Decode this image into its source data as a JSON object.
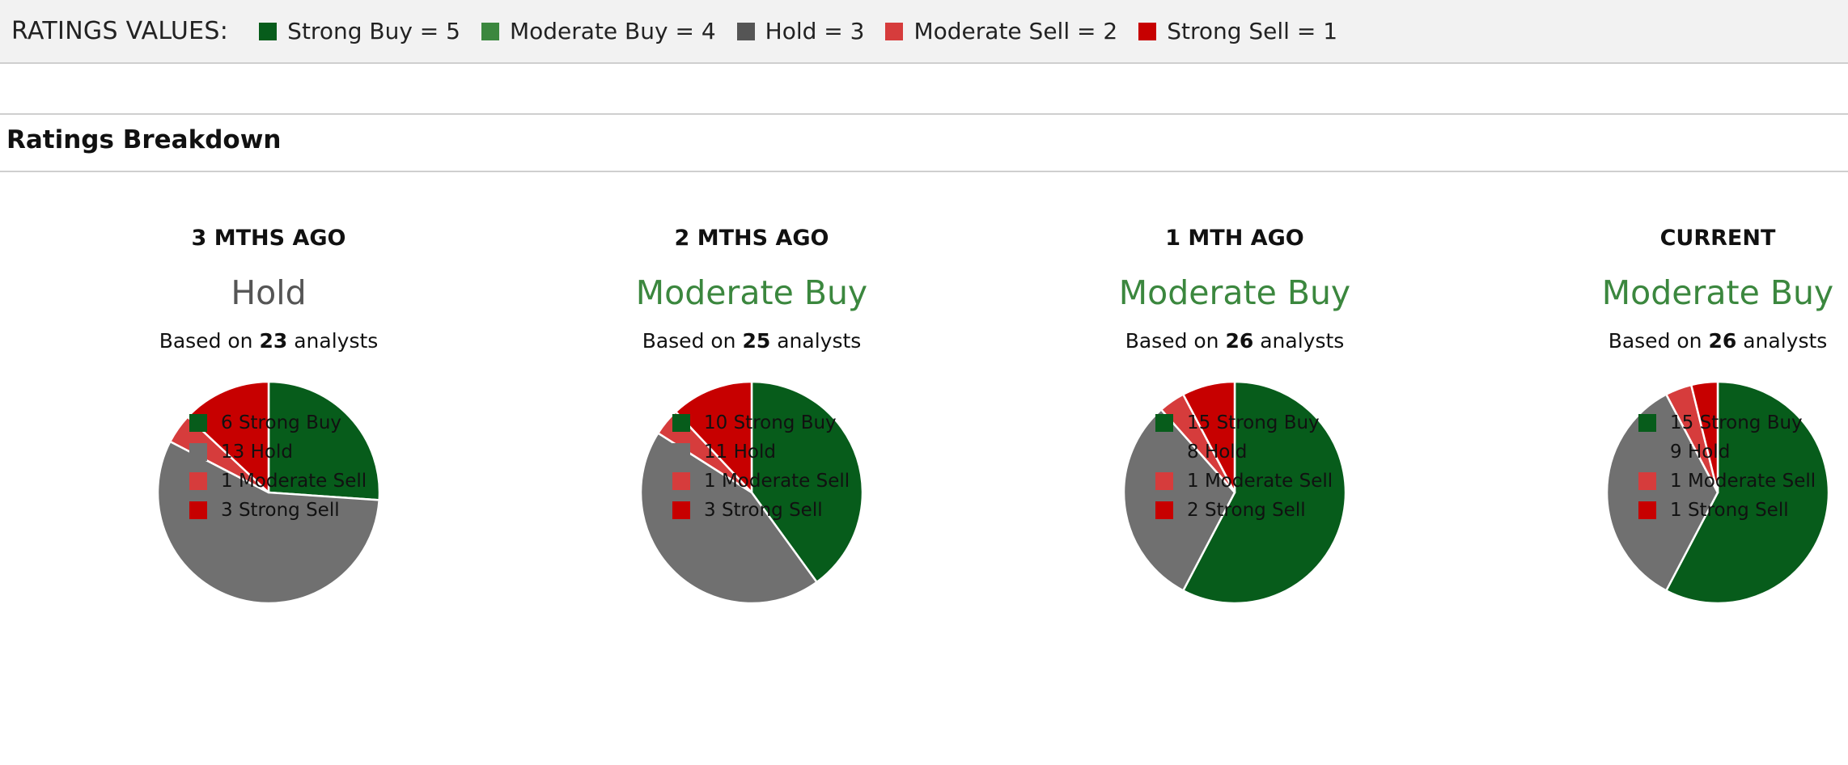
{
  "ratings_values": {
    "title": "RATINGS VALUES:",
    "items": [
      {
        "label": "Strong Buy = 5",
        "color": "#075c1b"
      },
      {
        "label": "Moderate Buy = 4",
        "color": "#3b873e"
      },
      {
        "label": "Hold = 3",
        "color": "#555555"
      },
      {
        "label": "Moderate Sell = 2",
        "color": "#d63c3c"
      },
      {
        "label": "Strong Sell = 1",
        "color": "#c70000"
      }
    ]
  },
  "section_title": "Ratings Breakdown",
  "colors": {
    "strong_buy": "#075c1b",
    "moderate_buy": "#3b873e",
    "hold": "#707070",
    "moderate_sell": "#d63c3c",
    "strong_sell": "#c70000",
    "hold_text": "#555555"
  },
  "chart_data": [
    {
      "type": "pie",
      "title": "3 MTHS AGO",
      "consensus": "Hold",
      "consensus_color": "#555555",
      "analysts_prefix": "Based on",
      "analysts_count": "23",
      "analysts_suffix": "analysts",
      "slices": [
        {
          "label": "Strong Buy",
          "value": 6,
          "color": "#075c1b"
        },
        {
          "label": "Hold",
          "value": 13,
          "color": "#707070"
        },
        {
          "label": "Moderate Sell",
          "value": 1,
          "color": "#d63c3c"
        },
        {
          "label": "Strong Sell",
          "value": 3,
          "color": "#c70000"
        }
      ],
      "legend": [
        "6 Strong Buy",
        "13 Hold",
        "1 Moderate Sell",
        "3 Strong Sell"
      ]
    },
    {
      "type": "pie",
      "title": "2 MTHS AGO",
      "consensus": "Moderate Buy",
      "consensus_color": "#3b873e",
      "analysts_prefix": "Based on",
      "analysts_count": "25",
      "analysts_suffix": "analysts",
      "slices": [
        {
          "label": "Strong Buy",
          "value": 10,
          "color": "#075c1b"
        },
        {
          "label": "Hold",
          "value": 11,
          "color": "#707070"
        },
        {
          "label": "Moderate Sell",
          "value": 1,
          "color": "#d63c3c"
        },
        {
          "label": "Strong Sell",
          "value": 3,
          "color": "#c70000"
        }
      ],
      "legend": [
        "10 Strong Buy",
        "11 Hold",
        "1 Moderate Sell",
        "3 Strong Sell"
      ]
    },
    {
      "type": "pie",
      "title": "1 MTH AGO",
      "consensus": "Moderate Buy",
      "consensus_color": "#3b873e",
      "analysts_prefix": "Based on",
      "analysts_count": "26",
      "analysts_suffix": "analysts",
      "slices": [
        {
          "label": "Strong Buy",
          "value": 15,
          "color": "#075c1b"
        },
        {
          "label": "Hold",
          "value": 8,
          "color": "#707070"
        },
        {
          "label": "Moderate Sell",
          "value": 1,
          "color": "#d63c3c"
        },
        {
          "label": "Strong Sell",
          "value": 2,
          "color": "#c70000"
        }
      ],
      "legend": [
        "15 Strong Buy",
        "8 Hold",
        "1 Moderate Sell",
        "2 Strong Sell"
      ]
    },
    {
      "type": "pie",
      "title": "CURRENT",
      "consensus": "Moderate Buy",
      "consensus_color": "#3b873e",
      "analysts_prefix": "Based on",
      "analysts_count": "26",
      "analysts_suffix": "analysts",
      "slices": [
        {
          "label": "Strong Buy",
          "value": 15,
          "color": "#075c1b"
        },
        {
          "label": "Hold",
          "value": 9,
          "color": "#707070"
        },
        {
          "label": "Moderate Sell",
          "value": 1,
          "color": "#d63c3c"
        },
        {
          "label": "Strong Sell",
          "value": 1,
          "color": "#c70000"
        }
      ],
      "legend": [
        "15 Strong Buy",
        "9 Hold",
        "1 Moderate Sell",
        "1 Strong Sell"
      ]
    }
  ]
}
